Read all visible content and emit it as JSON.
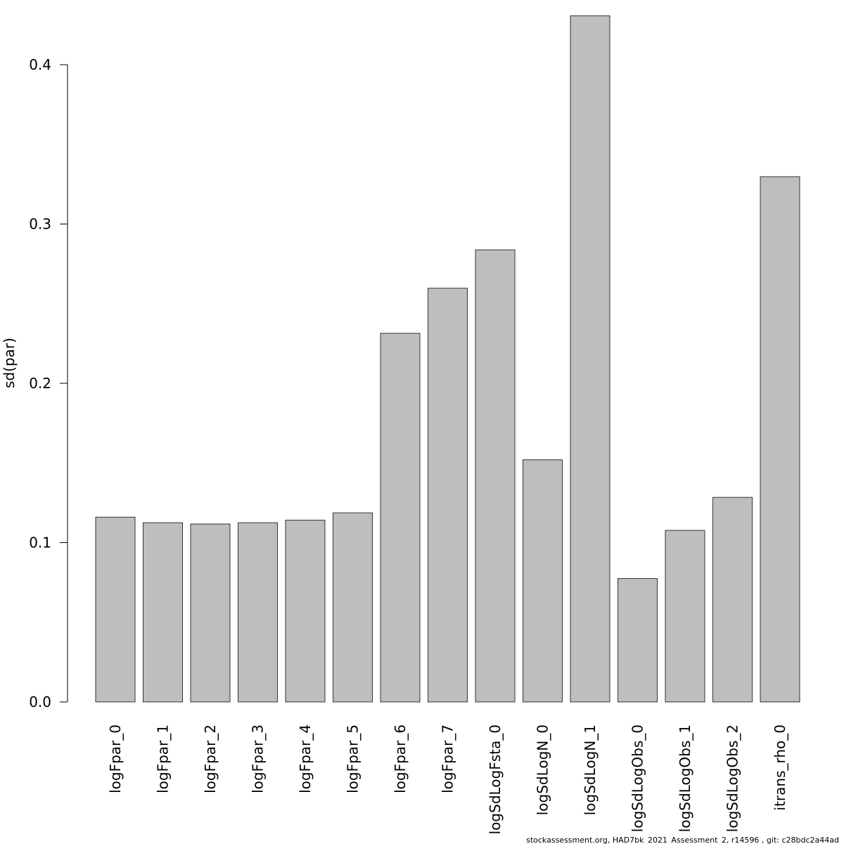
{
  "chart_data": {
    "type": "bar",
    "title": "",
    "xlabel": "",
    "ylabel": "sd(par)",
    "ylim": [
      0,
      0.43
    ],
    "yticks": [
      0.0,
      0.1,
      0.2,
      0.3,
      0.4
    ],
    "ytick_labels": [
      "0.0",
      "0.1",
      "0.2",
      "0.3",
      "0.4"
    ],
    "grid": false,
    "bar_color": "#bebebe",
    "categories": [
      "logFpar_0",
      "logFpar_1",
      "logFpar_2",
      "logFpar_3",
      "logFpar_4",
      "logFpar_5",
      "logFpar_6",
      "logFpar_7",
      "logSdLogFsta_0",
      "logSdLogN_0",
      "logSdLogN_1",
      "logSdLogObs_0",
      "logSdLogObs_1",
      "logSdLogObs_2",
      "itrans_rho_0"
    ],
    "values": [
      0.116,
      0.1125,
      0.1117,
      0.1125,
      0.1141,
      0.1187,
      0.2314,
      0.2597,
      0.2838,
      0.152,
      0.4307,
      0.0775,
      0.1077,
      0.1284,
      0.3297
    ]
  },
  "footer": "stockassessment.org, HAD7bk_2021_Assessment_2, r14596 , git: c28bdc2a44ad"
}
